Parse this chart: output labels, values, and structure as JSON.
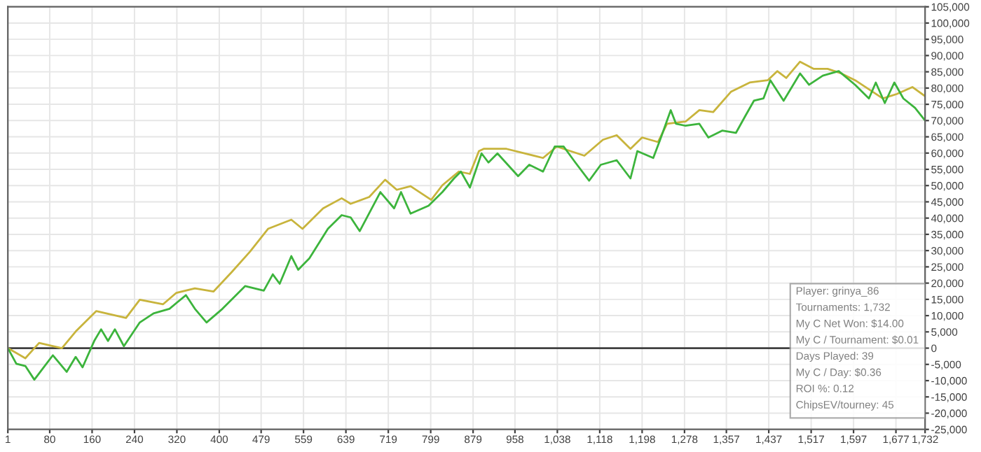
{
  "chart_data": {
    "type": "line",
    "xlim": [
      1,
      1732
    ],
    "xticks": [
      1,
      80,
      160,
      240,
      320,
      400,
      479,
      559,
      639,
      719,
      799,
      879,
      958,
      {
        "value": 1038,
        "label": "1,038"
      },
      {
        "value": 1118,
        "label": "1,118"
      },
      {
        "value": 1198,
        "label": "1,198"
      },
      {
        "value": 1278,
        "label": "1,278"
      },
      {
        "value": 1357,
        "label": "1,357"
      },
      {
        "value": 1437,
        "label": "1,437"
      },
      {
        "value": 1517,
        "label": "1,517"
      },
      {
        "value": 1597,
        "label": "1,597"
      },
      {
        "value": 1677,
        "label": "1,677"
      },
      {
        "value": 1732,
        "label": "1,732"
      }
    ],
    "ylim": [
      -25000,
      105000
    ],
    "yticks": [
      {
        "value": -25000,
        "label": "-25,000"
      },
      {
        "value": -20000,
        "label": "-20,000"
      },
      {
        "value": -15000,
        "label": "-15,000"
      },
      {
        "value": -10000,
        "label": "-10,000"
      },
      {
        "value": -5000,
        "label": "-5,000"
      },
      0,
      {
        "value": 5000,
        "label": "5,000"
      },
      {
        "value": 10000,
        "label": "10,000"
      },
      {
        "value": 15000,
        "label": "15,000"
      },
      {
        "value": 20000,
        "label": "20,000"
      },
      {
        "value": 25000,
        "label": "25,000"
      },
      {
        "value": 30000,
        "label": "30,000"
      },
      {
        "value": 35000,
        "label": "35,000"
      },
      {
        "value": 40000,
        "label": "40,000"
      },
      {
        "value": 45000,
        "label": "45,000"
      },
      {
        "value": 50000,
        "label": "50,000"
      },
      {
        "value": 55000,
        "label": "55,000"
      },
      {
        "value": 60000,
        "label": "60,000"
      },
      {
        "value": 65000,
        "label": "65,000"
      },
      {
        "value": 70000,
        "label": "70,000"
      },
      {
        "value": 75000,
        "label": "75,000"
      },
      {
        "value": 80000,
        "label": "80,000"
      },
      {
        "value": 85000,
        "label": "85,000"
      },
      {
        "value": 90000,
        "label": "90,000"
      },
      {
        "value": 95000,
        "label": "95,000"
      },
      {
        "value": 100000,
        "label": "100,000"
      },
      {
        "value": 105000,
        "label": "105,000"
      }
    ],
    "grid": true,
    "ref_lines": [
      {
        "axis": "y",
        "value": 0,
        "color": "#404040"
      }
    ],
    "series": [
      {
        "color": "#c8b43c",
        "x": [
          1,
          34,
          60,
          103,
          129,
          168,
          224,
          250,
          294,
          319,
          354,
          389,
          423,
          458,
          492,
          536,
          557,
          596,
          631,
          648,
          683,
          713,
          735,
          761,
          800,
          821,
          852,
          873,
          890,
          899,
          942,
          1011,
          1037,
          1089,
          1124,
          1150,
          1176,
          1198,
          1228,
          1245,
          1280,
          1306,
          1332,
          1366,
          1401,
          1435,
          1453,
          1470,
          1496,
          1522,
          1548,
          1574,
          1600,
          1626,
          1652,
          1679,
          1708,
          1732
        ],
        "values": [
          0,
          -3100,
          1600,
          0,
          5100,
          11400,
          9300,
          14900,
          13500,
          17000,
          18400,
          17400,
          23300,
          29700,
          36700,
          39500,
          36700,
          43000,
          46100,
          44400,
          46500,
          51800,
          48700,
          49800,
          45600,
          50100,
          54300,
          53600,
          60600,
          61300,
          61300,
          58500,
          62000,
          59200,
          64100,
          65500,
          61300,
          64800,
          63400,
          69000,
          69700,
          73200,
          72600,
          78900,
          81700,
          82400,
          85200,
          83100,
          88100,
          85900,
          85900,
          84500,
          82400,
          79600,
          76800,
          78200,
          80300,
          77500
        ]
      },
      {
        "color": "#3cb43c",
        "x": [
          1,
          17,
          34,
          51,
          64,
          86,
          112,
          129,
          142,
          164,
          177,
          190,
          203,
          220,
          250,
          276,
          306,
          337,
          354,
          376,
          406,
          449,
          484,
          501,
          514,
          536,
          549,
          570,
          605,
          631,
          648,
          665,
          704,
          730,
          743,
          761,
          795,
          821,
          843,
          856,
          873,
          895,
          908,
          925,
          964,
          985,
          1011,
          1033,
          1050,
          1072,
          1098,
          1120,
          1150,
          1176,
          1189,
          1219,
          1232,
          1252,
          1262,
          1280,
          1306,
          1323,
          1349,
          1375,
          1392,
          1409,
          1427,
          1440,
          1465,
          1496,
          1513,
          1539,
          1569,
          1600,
          1626,
          1639,
          1656,
          1674,
          1691,
          1713,
          1732
        ],
        "values": [
          0,
          -4800,
          -5500,
          -9700,
          -6900,
          -2200,
          -7300,
          -2700,
          -5900,
          2200,
          5800,
          2200,
          5800,
          600,
          7900,
          10700,
          12100,
          16300,
          12100,
          7900,
          12100,
          19100,
          17700,
          22700,
          19800,
          28300,
          24100,
          27600,
          36700,
          40900,
          40200,
          36000,
          48000,
          43000,
          48000,
          41400,
          43800,
          48000,
          52200,
          54300,
          49400,
          59900,
          57100,
          59900,
          52900,
          56400,
          54300,
          62000,
          62000,
          57100,
          51500,
          56400,
          57800,
          52200,
          60600,
          58500,
          64100,
          73200,
          69000,
          68400,
          69000,
          64800,
          66900,
          66200,
          71200,
          76100,
          76800,
          82400,
          76100,
          84500,
          81000,
          83800,
          85200,
          81000,
          76800,
          81700,
          75400,
          81700,
          76800,
          73900,
          70000
        ]
      }
    ],
    "annotations": [
      "Player: grinya_86",
      "Tournaments: 1,732",
      "My C Net Won: $14.00",
      "My C / Tournament: $0.01",
      "Days Played: 39",
      "My C / Day: $0.36",
      "ROI %: 0.12",
      "ChipsEV/tourney: 45"
    ]
  }
}
